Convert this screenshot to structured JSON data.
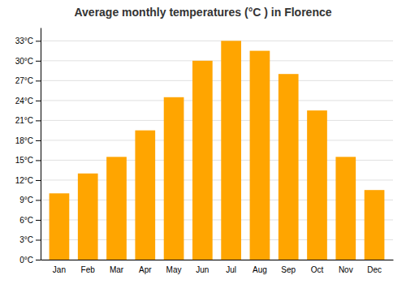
{
  "chart_data": {
    "type": "bar",
    "title": "Average monthly temperatures (°C ) in Florence",
    "categories": [
      "Jan",
      "Feb",
      "Mar",
      "Apr",
      "May",
      "Jun",
      "Jul",
      "Aug",
      "Sep",
      "Oct",
      "Nov",
      "Dec"
    ],
    "values": [
      10,
      13,
      15.5,
      19.5,
      24.5,
      30,
      33,
      31.5,
      28,
      22.5,
      15.5,
      10.5
    ],
    "color": "#FFA500",
    "ylim": [
      0,
      35
    ],
    "yticks": [
      {
        "value": 0,
        "label": "0°C"
      },
      {
        "value": 3,
        "label": "3°C"
      },
      {
        "value": 6,
        "label": "6°C"
      },
      {
        "value": 9,
        "label": "9°C"
      },
      {
        "value": 12,
        "label": "12°C"
      },
      {
        "value": 15,
        "label": "15°C"
      },
      {
        "value": 18,
        "label": "18°C"
      },
      {
        "value": 21,
        "label": "21°C"
      },
      {
        "value": 24,
        "label": "24°C"
      },
      {
        "value": 27,
        "label": "27°C"
      },
      {
        "value": 30,
        "label": "30°C"
      },
      {
        "value": 33,
        "label": "33°C"
      }
    ],
    "grid": true
  }
}
